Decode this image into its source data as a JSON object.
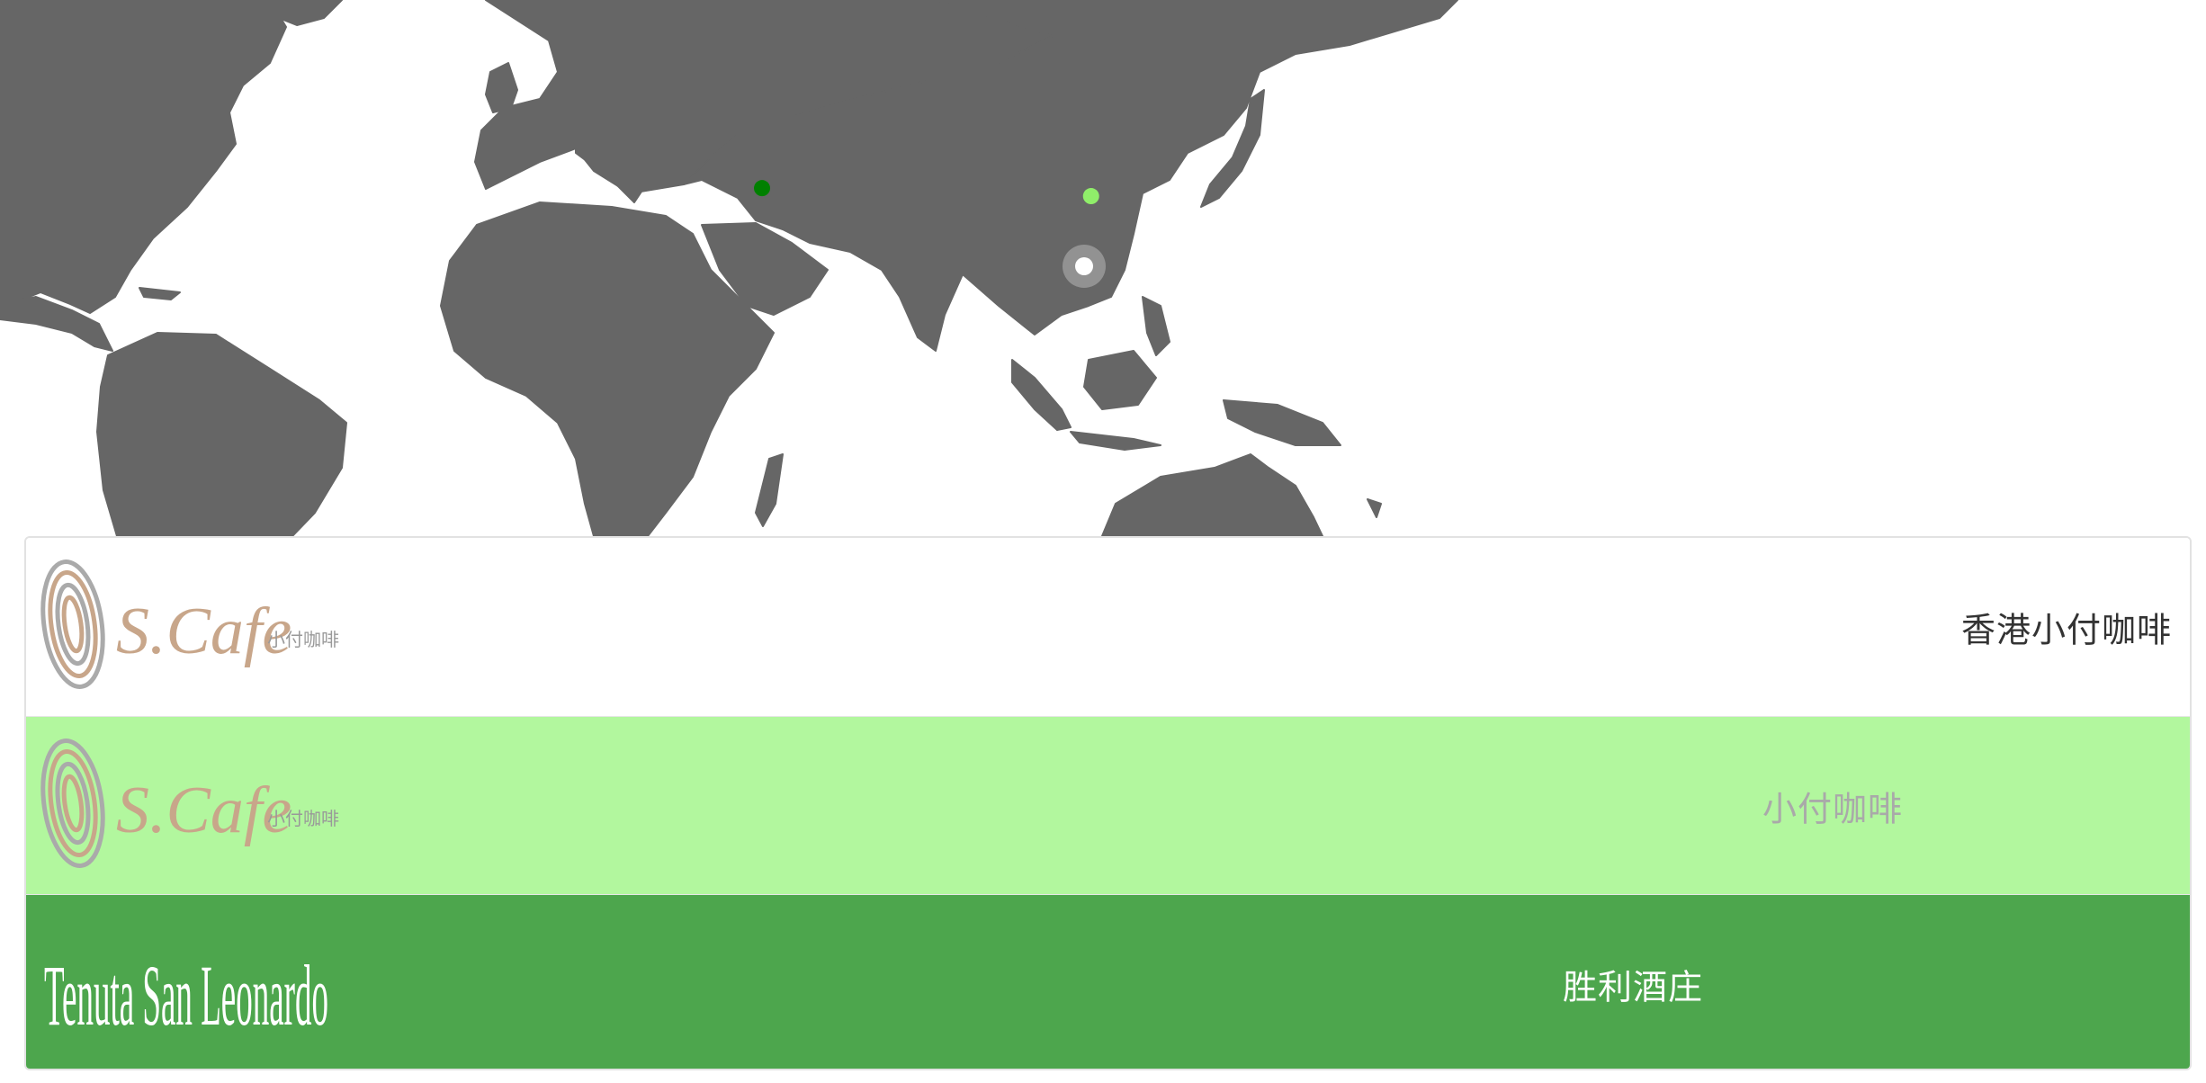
{
  "map": {
    "land_color": "#666666",
    "background_color": "#ffffff",
    "markers": [
      {
        "name": "marker-italy",
        "color": "#008000",
        "lat": 41.9,
        "lon": 12.5
      },
      {
        "name": "marker-north-china",
        "color": "#90ee6a",
        "lat": 39.9,
        "lon": 116.4
      },
      {
        "name": "marker-hong-kong",
        "color": "#ffffff",
        "ring_color": "#9e9e9e",
        "lat": 22.3,
        "lon": 114.2,
        "selected": true
      }
    ]
  },
  "list": {
    "items": [
      {
        "label": "香港小付咖啡",
        "background": "#ffffff",
        "text_color": "#333333",
        "logo": {
          "brand": "S.Cafe",
          "sub": "小付咖啡",
          "icon": "fingerprint-logo-icon"
        }
      },
      {
        "label": "小付咖啡",
        "background": "#b2f79e",
        "text_color": "#a9a9a9",
        "logo": {
          "brand": "S.Cafe",
          "sub": "小付咖啡",
          "icon": "fingerprint-logo-icon"
        }
      },
      {
        "label": "胜利酒庄",
        "background": "#4da64d",
        "text_color": "#ffffff",
        "logo": {
          "brand": "Tenuta San Leonardo",
          "icon": "tenuta-logo-icon"
        }
      }
    ]
  }
}
